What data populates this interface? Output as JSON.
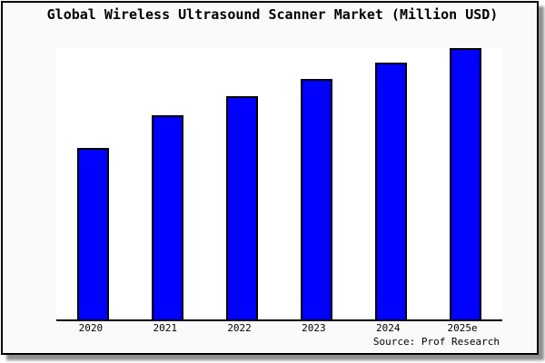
{
  "window": {
    "background": "#fafafa",
    "border_color": "#000000",
    "shadow_color": "#8f8f8f"
  },
  "title": "Global Wireless Ultrasound Scanner Market (Million USD)",
  "source_note": "Source: Prof Research",
  "colors": {
    "bar_fill": "#0000ff",
    "bar_border": "#000000",
    "plot_background": "#ffffff",
    "axis_line": "#000000",
    "text": "#000000"
  },
  "chart_data": {
    "type": "bar",
    "title": "Global Wireless Ultrasound Scanner Market (Million USD)",
    "categories": [
      "2020",
      "2021",
      "2022",
      "2023",
      "2024",
      "2025e"
    ],
    "values_relative": [
      63,
      75,
      82,
      88,
      94,
      100
    ],
    "bar_heights_pct_of_plot": [
      63.2,
      75.3,
      82.3,
      88.6,
      94.6,
      100
    ],
    "xlabel": "",
    "ylabel": "",
    "y_axis": {
      "ticks_visible": false,
      "gridlines": false
    },
    "legend": "none",
    "annotation": "Source: Prof Research",
    "note": "No numeric y-axis labels shown; values are relative bar heights normalized to 2025e = 100"
  }
}
